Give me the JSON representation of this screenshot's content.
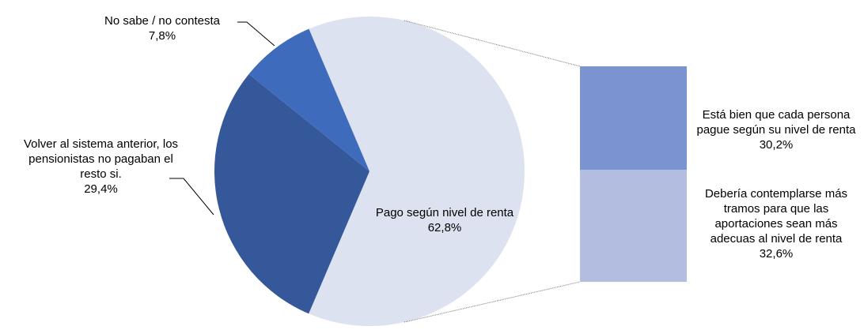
{
  "chart_data": {
    "type": "pie",
    "categories": [
      "Pago según nivel de renta",
      "Volver al sistema anterior, los pensionistas no pagaban el resto si.",
      "No sabe / no contesta"
    ],
    "values": [
      62.8,
      29.4,
      7.8
    ],
    "value_labels": [
      "62,8%",
      "29,4%",
      "7,8%"
    ],
    "colors": [
      "#dde2f0",
      "#34589a",
      "#3f6bbd"
    ],
    "breakdown": {
      "categories": [
        "Está bien que cada persona pague según su nivel de renta",
        "Debería contemplarse más tramos para que las aportaciones sean más adecuas al nivel de renta"
      ],
      "values": [
        30.2,
        32.6
      ],
      "value_labels": [
        "30,2%",
        "32,6%"
      ],
      "colors": [
        "#7b93d0",
        "#b2bde0"
      ]
    }
  }
}
